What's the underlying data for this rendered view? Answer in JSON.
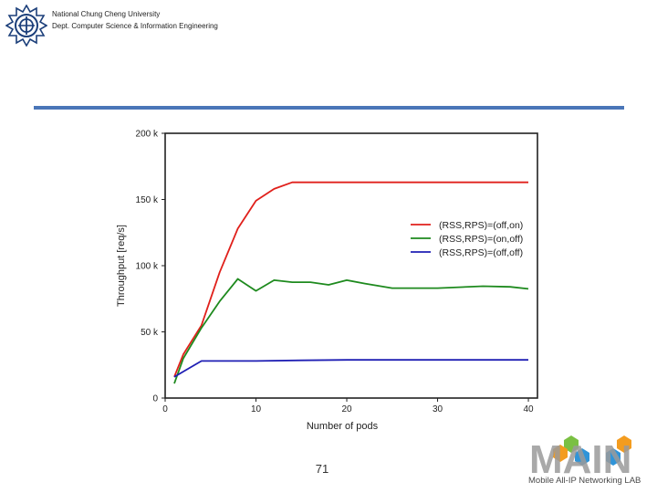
{
  "header": {
    "university": "National Chung Cheng University",
    "department": "Dept. Computer Science & Information Engineering"
  },
  "footer": {
    "page_number": "71",
    "lab_name": "Mobile All-IP Networking LAB"
  },
  "logos": {
    "university_logo": "university-seal-icon",
    "lab_logo": "main-lab-logo",
    "lab_logo_text": "MAIN"
  },
  "colors": {
    "rule": "#4a76b8",
    "red": "#e0201b",
    "green": "#1e8a1e",
    "blue": "#1f1fb4"
  },
  "chart_data": {
    "type": "line",
    "xlabel": "Number of pods",
    "ylabel": "Throughput [req/s]",
    "xlim": [
      0,
      41
    ],
    "ylim": [
      0,
      200000
    ],
    "xticks": [
      0,
      10,
      20,
      30,
      40
    ],
    "yticks": [
      {
        "value": 0,
        "label": "0"
      },
      {
        "value": 50000,
        "label": "50 k"
      },
      {
        "value": 100000,
        "label": "100 k"
      },
      {
        "value": 150000,
        "label": "150 k"
      },
      {
        "value": 200000,
        "label": "200 k"
      }
    ],
    "legend_position": "right",
    "series": [
      {
        "name": "(RSS,RPS)=(off,on)",
        "color": "#e0201b",
        "x": [
          1,
          2,
          4,
          6,
          8,
          10,
          12,
          14,
          16,
          18,
          20,
          25,
          30,
          35,
          40
        ],
        "y": [
          16000,
          33000,
          55000,
          95000,
          128000,
          149000,
          158000,
          163000,
          163000,
          163000,
          163000,
          163000,
          163000,
          163000,
          163000
        ]
      },
      {
        "name": "(RSS,RPS)=(on,off)",
        "color": "#1e8a1e",
        "x": [
          1,
          2,
          4,
          6,
          8,
          10,
          12,
          14,
          16,
          18,
          20,
          22,
          25,
          30,
          35,
          38,
          40
        ],
        "y": [
          11000,
          30000,
          53000,
          73000,
          90000,
          81000,
          89000,
          87500,
          87500,
          85500,
          89000,
          86500,
          83000,
          83000,
          84500,
          84000,
          82500
        ]
      },
      {
        "name": "(RSS,RPS)=(off,off)",
        "color": "#1f1fb4",
        "x": [
          1,
          2,
          4,
          6,
          8,
          10,
          15,
          20,
          25,
          30,
          35,
          40
        ],
        "y": [
          16000,
          20000,
          28000,
          28000,
          28000,
          28000,
          28500,
          28800,
          28800,
          28800,
          28800,
          28800
        ]
      }
    ]
  }
}
